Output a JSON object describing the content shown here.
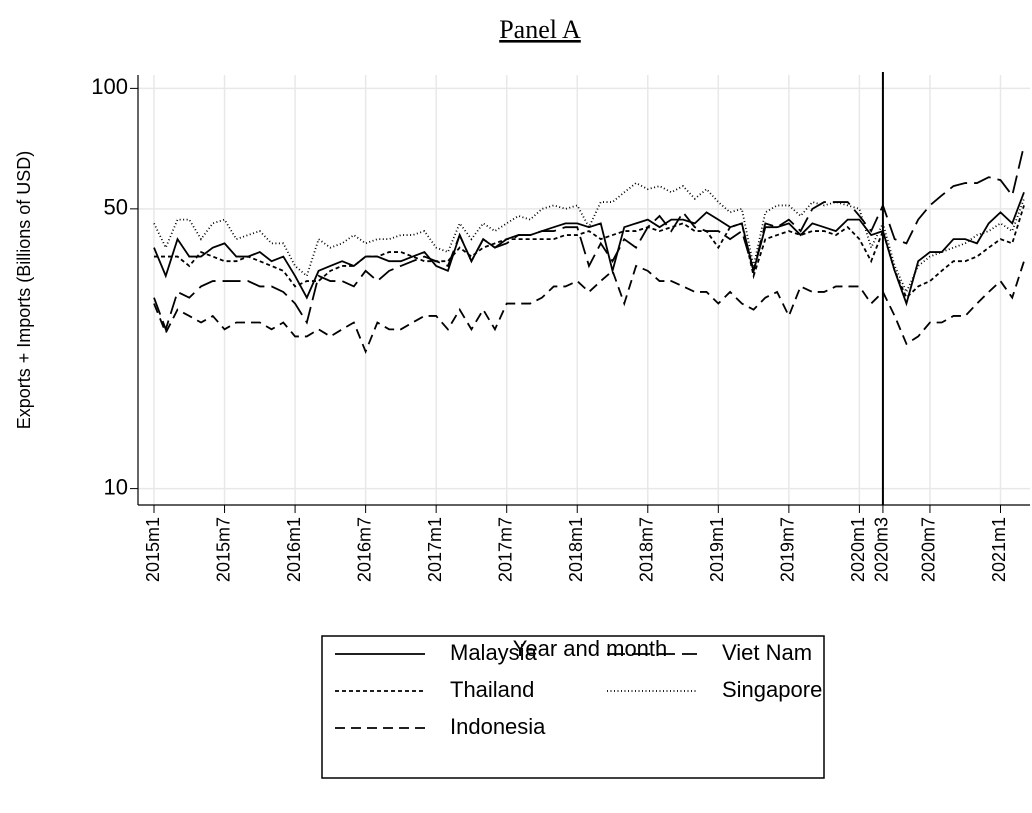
{
  "chart_data": {
    "type": "line",
    "title": "Panel A",
    "x_label": "Year and month",
    "y_label": "Exports + Imports (Billions of USD)",
    "categories": [
      "2015m1",
      null,
      null,
      null,
      null,
      null,
      "2015m7",
      null,
      null,
      null,
      null,
      null,
      "2016m1",
      null,
      null,
      null,
      null,
      null,
      "2016m7",
      null,
      null,
      null,
      null,
      null,
      "2017m1",
      null,
      null,
      null,
      null,
      null,
      "2017m7",
      null,
      null,
      null,
      null,
      null,
      "2018m1",
      null,
      null,
      null,
      null,
      null,
      "2018m7",
      null,
      null,
      null,
      null,
      null,
      "2019m1",
      null,
      null,
      null,
      null,
      null,
      "2019m7",
      null,
      null,
      null,
      null,
      null,
      "2020m1",
      null,
      "2020m3",
      null,
      null,
      null,
      "2020m7",
      null,
      null,
      null,
      null,
      null,
      "2021m1",
      null,
      null
    ],
    "vline_at": "2020m3",
    "log_scale": true,
    "grid": true,
    "legend_position": "bottom",
    "ylim": [
      9.1,
      108
    ],
    "yticks": [
      10,
      50,
      100
    ],
    "series": [
      {
        "name": "Malaysia",
        "color": "#000000",
        "dash": "solid",
        "values": [
          40,
          34,
          42,
          38,
          38,
          40,
          41,
          38,
          38,
          39,
          37,
          38,
          34,
          30,
          35,
          36,
          37,
          36,
          38,
          38,
          37,
          37,
          38,
          39,
          36,
          35,
          43,
          37,
          42,
          40,
          42,
          43,
          43,
          44,
          45,
          46,
          46,
          45,
          46,
          35,
          45,
          46,
          47,
          45,
          47,
          47,
          46,
          49,
          47,
          45,
          46,
          35,
          45,
          45,
          46,
          43,
          46,
          45,
          44,
          47,
          47,
          43,
          44,
          35,
          29,
          37,
          39,
          39,
          42,
          42,
          41,
          46,
          49,
          46,
          55
        ]
      },
      {
        "name": "Viet Nam",
        "color": "#000000",
        "dash": "longdash",
        "values": [
          30,
          25,
          31,
          30,
          32,
          33,
          33,
          33,
          33,
          32,
          32,
          31,
          29,
          26,
          34,
          33,
          33,
          32,
          35,
          33,
          35,
          36,
          37,
          38,
          37,
          36,
          43,
          37,
          42,
          40,
          41,
          43,
          43,
          44,
          44,
          45,
          45,
          36,
          41,
          37,
          42,
          40,
          45,
          48,
          44,
          49,
          45,
          44,
          44,
          42,
          44,
          35,
          46,
          45,
          47,
          44,
          50,
          52,
          52,
          52,
          48,
          44,
          51,
          42,
          41,
          47,
          51,
          54,
          57,
          58,
          58,
          60,
          59,
          54,
          72
        ]
      },
      {
        "name": "Thailand",
        "color": "#000000",
        "dash": "shortdash",
        "values": [
          38,
          38,
          38,
          36,
          39,
          38,
          37,
          37,
          38,
          37,
          36,
          35,
          32,
          33,
          33,
          35,
          36,
          36,
          38,
          38,
          39,
          39,
          38,
          37,
          37,
          37,
          40,
          38,
          40,
          41,
          42,
          42,
          42,
          42,
          42,
          43,
          43,
          44,
          42,
          43,
          44,
          44,
          45,
          44,
          45,
          46,
          44,
          44,
          40,
          45,
          46,
          34,
          42,
          43,
          44,
          43,
          44,
          44,
          43,
          45,
          42,
          37,
          44,
          35,
          30,
          32,
          33,
          35,
          37,
          37,
          38,
          40,
          42,
          41,
          51
        ]
      },
      {
        "name": "Singapore",
        "color": "#000000",
        "dash": "dot",
        "values": [
          46,
          40,
          47,
          47,
          42,
          46,
          47,
          42,
          43,
          44,
          41,
          41,
          36,
          34,
          42,
          40,
          41,
          43,
          41,
          42,
          42,
          43,
          43,
          44,
          40,
          39,
          46,
          42,
          46,
          44,
          46,
          48,
          47,
          50,
          51,
          50,
          51,
          45,
          52,
          52,
          55,
          58,
          56,
          57,
          55,
          57,
          53,
          56,
          52,
          49,
          50,
          36,
          49,
          51,
          51,
          48,
          52,
          51,
          52,
          51,
          50,
          40,
          46,
          36,
          31,
          36,
          38,
          39,
          40,
          41,
          43,
          44,
          46,
          44,
          53
        ]
      },
      {
        "name": "Indonesia",
        "color": "#000000",
        "dash": "dash",
        "values": [
          29,
          24.5,
          28,
          27,
          26,
          27,
          25,
          26,
          26,
          26,
          25,
          26,
          24,
          24,
          25,
          24,
          25,
          26,
          22,
          26,
          25,
          25,
          26,
          27,
          27,
          25,
          28,
          25,
          28,
          25,
          29,
          29,
          29,
          30,
          32,
          32,
          33,
          31,
          33,
          35,
          29,
          36,
          35,
          33,
          33,
          32,
          31,
          31,
          29,
          31,
          29,
          28,
          30,
          31,
          27,
          32,
          31,
          31,
          32,
          32,
          32,
          29,
          31,
          27,
          23,
          24,
          26,
          26,
          27,
          27,
          29,
          31,
          33,
          30,
          37
        ]
      }
    ]
  }
}
